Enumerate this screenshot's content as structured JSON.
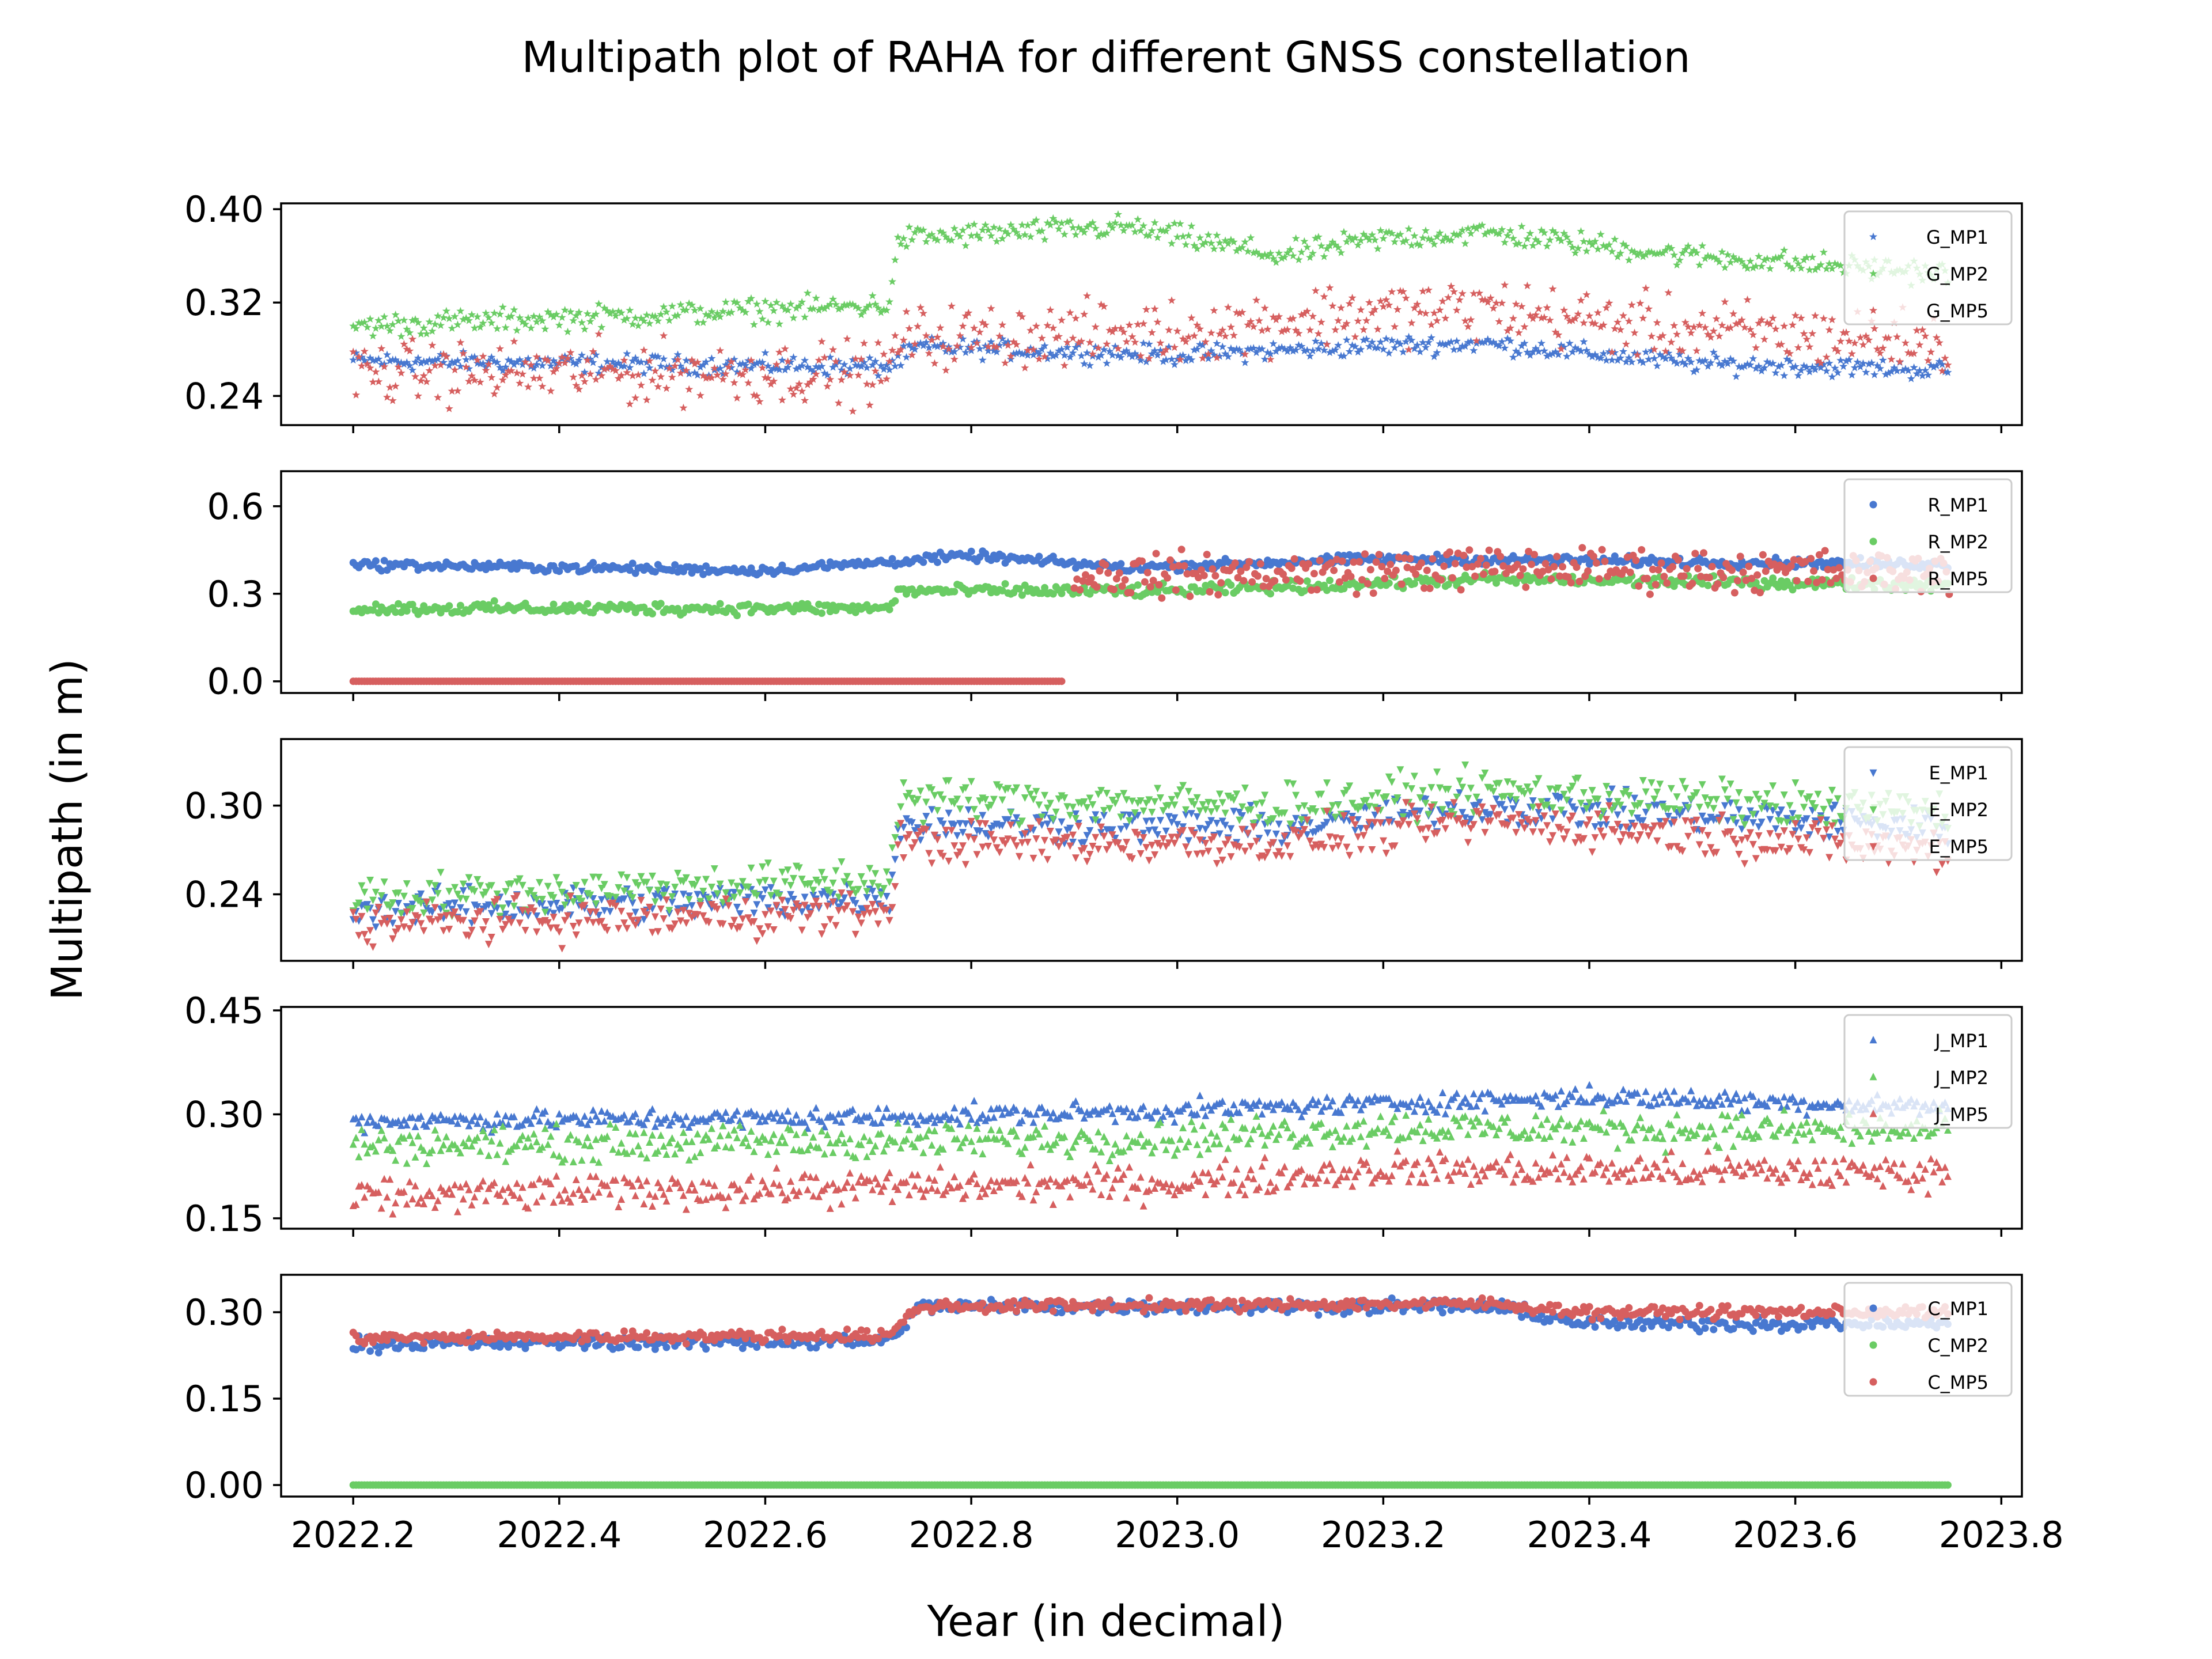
{
  "chart_data": {
    "type": "scatter",
    "title": "Multipath plot of RAHA for different GNSS constellation",
    "xlabel": "Year (in decimal)",
    "ylabel": "Multipath (in m)",
    "xlim": [
      2022.13,
      2023.82
    ],
    "xticks": [
      "2022.2",
      "2022.4",
      "2022.6",
      "2022.8",
      "2023.0",
      "2023.2",
      "2023.4",
      "2023.6",
      "2023.8"
    ],
    "x_start": 2022.2,
    "x_end": 2023.75,
    "legend_position": "top-right",
    "colors": {
      "MP1": "#4878d0",
      "MP2": "#6acc64",
      "MP5": "#d65f5f"
    },
    "panels": [
      {
        "name": "G",
        "marker": "star",
        "ylim": [
          0.215,
          0.405
        ],
        "yticks": [
          "0.24",
          "0.32",
          "0.40"
        ],
        "legend": [
          "G_MP1",
          "G_MP2",
          "G_MP5"
        ],
        "series": [
          {
            "name": "G_MP1",
            "noise": 0.004,
            "points": [
              [
                2022.2,
                0.27
              ],
              [
                2022.72,
                0.265
              ],
              [
                2022.75,
                0.282
              ],
              [
                2023.0,
                0.275
              ],
              [
                2023.2,
                0.283
              ],
              [
                2023.3,
                0.285
              ],
              [
                2023.5,
                0.268
              ],
              [
                2023.75,
                0.262
              ]
            ]
          },
          {
            "name": "G_MP2",
            "noise": 0.005,
            "points": [
              [
                2022.2,
                0.3
              ],
              [
                2022.5,
                0.31
              ],
              [
                2022.72,
                0.318
              ],
              [
                2022.73,
                0.375
              ],
              [
                2022.95,
                0.385
              ],
              [
                2023.1,
                0.36
              ],
              [
                2023.2,
                0.375
              ],
              [
                2023.3,
                0.38
              ],
              [
                2023.5,
                0.36
              ],
              [
                2023.75,
                0.345
              ]
            ]
          },
          {
            "name": "G_MP5",
            "noise": 0.013,
            "points": [
              [
                2022.2,
                0.26
              ],
              [
                2022.72,
                0.26
              ],
              [
                2022.73,
                0.29
              ],
              [
                2023.0,
                0.295
              ],
              [
                2023.15,
                0.31
              ],
              [
                2023.3,
                0.315
              ],
              [
                2023.45,
                0.3
              ],
              [
                2023.75,
                0.285
              ]
            ]
          }
        ]
      },
      {
        "name": "R",
        "marker": "circle",
        "ylim": [
          -0.04,
          0.72
        ],
        "yticks": [
          "0.0",
          "0.3",
          "0.6"
        ],
        "legend": [
          "R_MP1",
          "R_MP2",
          "R_MP5"
        ],
        "series": [
          {
            "name": "R_MP1",
            "noise": 0.008,
            "points": [
              [
                2022.2,
                0.4
              ],
              [
                2022.6,
                0.38
              ],
              [
                2022.8,
                0.43
              ],
              [
                2022.95,
                0.39
              ],
              [
                2023.2,
                0.42
              ],
              [
                2023.75,
                0.4
              ]
            ]
          },
          {
            "name": "R_MP2",
            "noise": 0.01,
            "points": [
              [
                2022.2,
                0.25
              ],
              [
                2022.72,
                0.25
              ],
              [
                2022.73,
                0.31
              ],
              [
                2023.0,
                0.31
              ],
              [
                2023.3,
                0.35
              ],
              [
                2023.75,
                0.33
              ]
            ]
          },
          {
            "name": "R_MP5",
            "noise": 0.0,
            "points": [
              [
                2022.2,
                0.0
              ],
              [
                2022.89,
                0.0
              ]
            ]
          },
          {
            "name": "R_MP5",
            "noise": 0.035,
            "points": [
              [
                2022.9,
                0.36
              ],
              [
                2023.1,
                0.37
              ],
              [
                2023.3,
                0.39
              ],
              [
                2023.75,
                0.37
              ]
            ]
          }
        ]
      },
      {
        "name": "E",
        "marker": "triangle-down",
        "ylim": [
          0.195,
          0.345
        ],
        "yticks": [
          "0.24",
          "0.30"
        ],
        "legend": [
          "E_MP1",
          "E_MP2",
          "E_MP5"
        ],
        "series": [
          {
            "name": "E_MP1",
            "noise": 0.006,
            "points": [
              [
                2022.2,
                0.23
              ],
              [
                2022.72,
                0.238
              ],
              [
                2022.73,
                0.288
              ],
              [
                2023.1,
                0.285
              ],
              [
                2023.3,
                0.3
              ],
              [
                2023.75,
                0.285
              ]
            ]
          },
          {
            "name": "E_MP2",
            "noise": 0.007,
            "points": [
              [
                2022.2,
                0.238
              ],
              [
                2022.72,
                0.25
              ],
              [
                2022.73,
                0.305
              ],
              [
                2023.1,
                0.3
              ],
              [
                2023.3,
                0.31
              ],
              [
                2023.75,
                0.295
              ]
            ]
          },
          {
            "name": "E_MP5",
            "noise": 0.007,
            "points": [
              [
                2022.2,
                0.22
              ],
              [
                2022.72,
                0.228
              ],
              [
                2022.73,
                0.275
              ],
              [
                2023.1,
                0.275
              ],
              [
                2023.3,
                0.29
              ],
              [
                2023.75,
                0.27
              ]
            ]
          }
        ]
      },
      {
        "name": "J",
        "marker": "triangle-up",
        "ylim": [
          0.135,
          0.455
        ],
        "yticks": [
          "0.15",
          "0.30",
          "0.45"
        ],
        "legend": [
          "J_MP1",
          "J_MP2",
          "J_MP5"
        ],
        "series": [
          {
            "name": "J_MP1",
            "noise": 0.007,
            "points": [
              [
                2022.2,
                0.29
              ],
              [
                2022.7,
                0.295
              ],
              [
                2023.0,
                0.305
              ],
              [
                2023.2,
                0.315
              ],
              [
                2023.4,
                0.325
              ],
              [
                2023.75,
                0.31
              ]
            ]
          },
          {
            "name": "J_MP2",
            "noise": 0.012,
            "points": [
              [
                2022.2,
                0.255
              ],
              [
                2022.7,
                0.26
              ],
              [
                2023.0,
                0.265
              ],
              [
                2023.2,
                0.28
              ],
              [
                2023.75,
                0.275
              ]
            ]
          },
          {
            "name": "J_MP5",
            "noise": 0.012,
            "points": [
              [
                2022.2,
                0.18
              ],
              [
                2022.5,
                0.19
              ],
              [
                2023.0,
                0.2
              ],
              [
                2023.2,
                0.22
              ],
              [
                2023.75,
                0.215
              ]
            ]
          }
        ]
      },
      {
        "name": "C",
        "marker": "circle",
        "ylim": [
          -0.02,
          0.365
        ],
        "yticks": [
          "0.00",
          "0.15",
          "0.30"
        ],
        "legend": [
          "C_MP1",
          "C_MP2",
          "C_MP5"
        ],
        "series": [
          {
            "name": "C_MP1",
            "noise": 0.006,
            "points": [
              [
                2022.2,
                0.245
              ],
              [
                2022.72,
                0.25
              ],
              [
                2022.75,
                0.31
              ],
              [
                2023.3,
                0.31
              ],
              [
                2023.4,
                0.28
              ],
              [
                2023.75,
                0.28
              ]
            ]
          },
          {
            "name": "C_MP2",
            "noise": 0.0,
            "points": [
              [
                2022.2,
                0.0
              ],
              [
                2023.75,
                0.0
              ]
            ]
          },
          {
            "name": "C_MP5",
            "noise": 0.005,
            "points": [
              [
                2022.2,
                0.255
              ],
              [
                2022.72,
                0.26
              ],
              [
                2022.75,
                0.31
              ],
              [
                2023.3,
                0.315
              ],
              [
                2023.4,
                0.3
              ],
              [
                2023.75,
                0.3
              ]
            ]
          }
        ]
      }
    ]
  }
}
